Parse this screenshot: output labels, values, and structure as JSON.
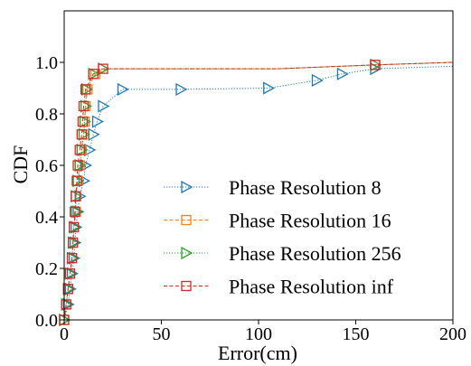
{
  "chart_data": {
    "type": "line",
    "title": "",
    "xlabel": "Error(cm)",
    "ylabel": "CDF",
    "xlim": [
      0,
      200
    ],
    "ylim": [
      0,
      1.2
    ],
    "xticks": [
      "0",
      "50",
      "100",
      "150",
      "200"
    ],
    "yticks": [
      "0.0",
      "0.2",
      "0.4",
      "0.6",
      "0.8",
      "1.0"
    ],
    "grid": false,
    "legend_position": "lower-right",
    "series": [
      {
        "name": "Phase Resolution 8",
        "color": "#1f77b4",
        "marker": "triangle-right",
        "dash": "dotted",
        "points": [
          [
            0,
            0
          ],
          [
            2,
            0.06
          ],
          [
            3,
            0.12
          ],
          [
            4,
            0.18
          ],
          [
            5,
            0.24
          ],
          [
            5.5,
            0.3
          ],
          [
            6,
            0.36
          ],
          [
            7,
            0.42
          ],
          [
            8,
            0.48
          ],
          [
            10,
            0.54
          ],
          [
            11,
            0.6
          ],
          [
            13,
            0.66
          ],
          [
            15,
            0.72
          ],
          [
            17,
            0.77
          ],
          [
            20,
            0.83
          ],
          [
            30,
            0.895
          ],
          [
            60,
            0.895
          ],
          [
            105,
            0.9
          ],
          [
            130,
            0.93
          ],
          [
            143,
            0.955
          ],
          [
            160,
            0.975
          ],
          [
            200,
            0.985
          ]
        ]
      },
      {
        "name": "Phase Resolution 16",
        "color": "#ff7f0e",
        "marker": "square",
        "dash": "dashed",
        "points": [
          [
            0,
            0
          ],
          [
            1,
            0.06
          ],
          [
            2,
            0.12
          ],
          [
            3,
            0.18
          ],
          [
            4,
            0.24
          ],
          [
            4.5,
            0.3
          ],
          [
            5,
            0.36
          ],
          [
            6,
            0.42
          ],
          [
            6,
            0.48
          ],
          [
            7,
            0.54
          ],
          [
            8,
            0.6
          ],
          [
            9,
            0.66
          ],
          [
            10,
            0.72
          ],
          [
            10.5,
            0.77
          ],
          [
            11,
            0.83
          ],
          [
            12,
            0.895
          ],
          [
            16,
            0.955
          ],
          [
            22,
            0.975
          ],
          [
            110,
            0.975
          ],
          [
            160,
            0.99
          ],
          [
            200,
            1.0
          ]
        ]
      },
      {
        "name": "Phase Resolution 256",
        "color": "#2ca02c",
        "marker": "triangle-right",
        "dash": "dotted",
        "points": [
          [
            0,
            0
          ],
          [
            1,
            0.06
          ],
          [
            2,
            0.12
          ],
          [
            3,
            0.18
          ],
          [
            4,
            0.24
          ],
          [
            4.5,
            0.3
          ],
          [
            5,
            0.36
          ],
          [
            6,
            0.42
          ],
          [
            6,
            0.48
          ],
          [
            7,
            0.54
          ],
          [
            8,
            0.6
          ],
          [
            9,
            0.66
          ],
          [
            10,
            0.72
          ],
          [
            10.5,
            0.77
          ],
          [
            11,
            0.83
          ],
          [
            11.5,
            0.895
          ],
          [
            15,
            0.955
          ],
          [
            20,
            0.975
          ],
          [
            110,
            0.975
          ],
          [
            160,
            0.99
          ],
          [
            200,
            1.0
          ]
        ]
      },
      {
        "name": "Phase Resolution inf",
        "color": "#d62728",
        "marker": "square",
        "dash": "dashed",
        "points": [
          [
            0,
            0
          ],
          [
            1,
            0.06
          ],
          [
            2,
            0.12
          ],
          [
            3,
            0.18
          ],
          [
            4,
            0.24
          ],
          [
            4.5,
            0.3
          ],
          [
            5,
            0.36
          ],
          [
            5.5,
            0.42
          ],
          [
            6,
            0.48
          ],
          [
            6.5,
            0.54
          ],
          [
            7,
            0.6
          ],
          [
            8,
            0.66
          ],
          [
            9,
            0.72
          ],
          [
            9.5,
            0.77
          ],
          [
            10,
            0.83
          ],
          [
            11,
            0.895
          ],
          [
            15,
            0.955
          ],
          [
            20,
            0.975
          ],
          [
            110,
            0.975
          ],
          [
            160,
            0.99
          ],
          [
            200,
            1.0
          ]
        ]
      }
    ]
  }
}
